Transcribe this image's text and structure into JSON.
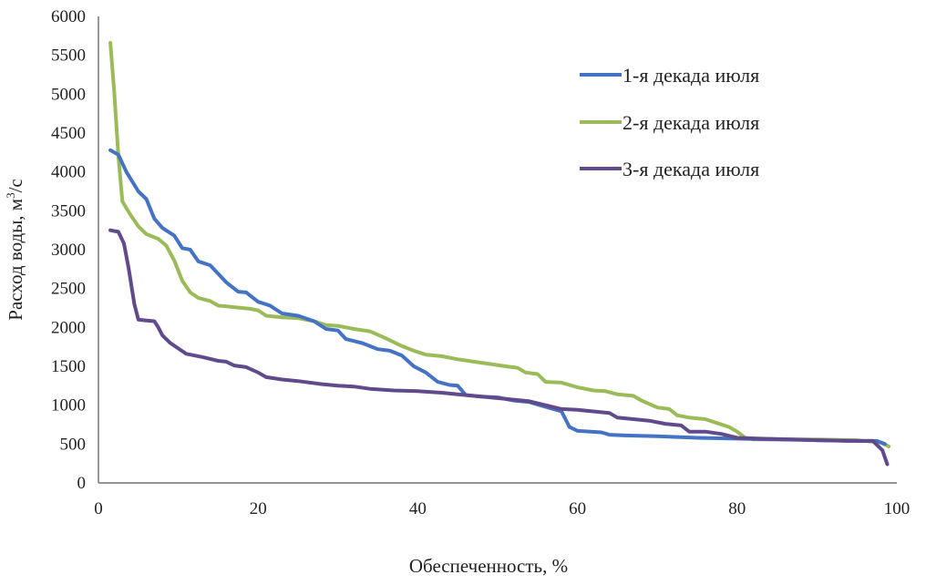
{
  "chart_data": {
    "type": "line",
    "title": "",
    "xlabel": "Обеспеченность, %",
    "ylabel": "Расход воды, м³/с",
    "ylabel_base": "Расход воды, м",
    "ylabel_sup": "3",
    "ylabel_tail": "/с",
    "xlim": [
      0,
      100
    ],
    "ylim": [
      0,
      6000
    ],
    "xticks": [
      "0",
      "20",
      "40",
      "60",
      "80",
      "100"
    ],
    "xtick_values": [
      0,
      20,
      40,
      60,
      80,
      100
    ],
    "yticks": [
      "0",
      "500",
      "1000",
      "1500",
      "2000",
      "2500",
      "3000",
      "3500",
      "4000",
      "4500",
      "5000",
      "5500",
      "6000"
    ],
    "ytick_values": [
      0,
      500,
      1000,
      1500,
      2000,
      2500,
      3000,
      3500,
      4000,
      4500,
      5000,
      5500,
      6000
    ],
    "grid": false,
    "legend_position": "top-right",
    "series": [
      {
        "name": "1-я декада июля",
        "color": "#4472c4",
        "points": [
          [
            1.5,
            4280
          ],
          [
            2.5,
            4220
          ],
          [
            3.5,
            4000
          ],
          [
            5,
            3750
          ],
          [
            6,
            3650
          ],
          [
            7,
            3400
          ],
          [
            8,
            3280
          ],
          [
            9.5,
            3180
          ],
          [
            10.5,
            3020
          ],
          [
            11.5,
            3000
          ],
          [
            12.5,
            2850
          ],
          [
            14,
            2800
          ],
          [
            16,
            2580
          ],
          [
            17.5,
            2460
          ],
          [
            18.5,
            2450
          ],
          [
            20,
            2330
          ],
          [
            21.5,
            2280
          ],
          [
            23,
            2180
          ],
          [
            25,
            2150
          ],
          [
            27,
            2080
          ],
          [
            28.5,
            1980
          ],
          [
            30,
            1960
          ],
          [
            31,
            1850
          ],
          [
            33,
            1800
          ],
          [
            35,
            1720
          ],
          [
            36.5,
            1700
          ],
          [
            38,
            1640
          ],
          [
            39.5,
            1500
          ],
          [
            41,
            1420
          ],
          [
            42.5,
            1300
          ],
          [
            44,
            1260
          ],
          [
            45,
            1250
          ],
          [
            46,
            1130
          ],
          [
            48,
            1110
          ],
          [
            50,
            1100
          ],
          [
            52,
            1060
          ],
          [
            54,
            1040
          ],
          [
            56,
            980
          ],
          [
            58,
            920
          ],
          [
            59,
            720
          ],
          [
            60,
            670
          ],
          [
            63,
            650
          ],
          [
            64,
            620
          ],
          [
            66,
            610
          ],
          [
            70,
            600
          ],
          [
            75,
            580
          ],
          [
            80,
            570
          ],
          [
            85,
            560
          ],
          [
            90,
            550
          ],
          [
            95,
            540
          ],
          [
            97.5,
            540
          ],
          [
            98.5,
            500
          ]
        ]
      },
      {
        "name": "2-я декада июля",
        "color": "#9bbb59",
        "points": [
          [
            1.5,
            5660
          ],
          [
            2,
            5000
          ],
          [
            2.5,
            4200
          ],
          [
            3,
            3620
          ],
          [
            4,
            3450
          ],
          [
            5,
            3300
          ],
          [
            6,
            3200
          ],
          [
            7.5,
            3140
          ],
          [
            8.5,
            3050
          ],
          [
            9.5,
            2860
          ],
          [
            10.5,
            2600
          ],
          [
            11.5,
            2450
          ],
          [
            12.5,
            2380
          ],
          [
            14,
            2340
          ],
          [
            15,
            2280
          ],
          [
            17,
            2260
          ],
          [
            19,
            2240
          ],
          [
            20,
            2220
          ],
          [
            21,
            2150
          ],
          [
            23,
            2130
          ],
          [
            25,
            2120
          ],
          [
            27,
            2080
          ],
          [
            28.5,
            2030
          ],
          [
            30,
            2020
          ],
          [
            32,
            1980
          ],
          [
            34,
            1950
          ],
          [
            36,
            1860
          ],
          [
            38,
            1760
          ],
          [
            39.5,
            1700
          ],
          [
            41,
            1650
          ],
          [
            43,
            1630
          ],
          [
            45,
            1590
          ],
          [
            47,
            1560
          ],
          [
            49,
            1530
          ],
          [
            51,
            1500
          ],
          [
            52.5,
            1480
          ],
          [
            53.5,
            1420
          ],
          [
            55,
            1400
          ],
          [
            56,
            1300
          ],
          [
            58,
            1290
          ],
          [
            60,
            1230
          ],
          [
            62,
            1190
          ],
          [
            63.5,
            1180
          ],
          [
            65,
            1140
          ],
          [
            67,
            1120
          ],
          [
            68,
            1060
          ],
          [
            70,
            970
          ],
          [
            71.5,
            950
          ],
          [
            72.5,
            870
          ],
          [
            74,
            840
          ],
          [
            76,
            820
          ],
          [
            77.5,
            770
          ],
          [
            79,
            720
          ],
          [
            80,
            660
          ],
          [
            81,
            580
          ],
          [
            82,
            560
          ],
          [
            85,
            560
          ],
          [
            90,
            560
          ],
          [
            95,
            550
          ],
          [
            98,
            520
          ],
          [
            99,
            470
          ]
        ]
      },
      {
        "name": "3-я декада июля",
        "color": "#604a8b",
        "points": [
          [
            1.5,
            3250
          ],
          [
            2.5,
            3230
          ],
          [
            3.2,
            3080
          ],
          [
            3.8,
            2750
          ],
          [
            4.5,
            2300
          ],
          [
            5,
            2100
          ],
          [
            6,
            2090
          ],
          [
            7,
            2080
          ],
          [
            7.5,
            2000
          ],
          [
            8,
            1900
          ],
          [
            9,
            1800
          ],
          [
            10,
            1730
          ],
          [
            11,
            1660
          ],
          [
            13,
            1620
          ],
          [
            15,
            1570
          ],
          [
            16,
            1560
          ],
          [
            17,
            1510
          ],
          [
            18.5,
            1490
          ],
          [
            20,
            1420
          ],
          [
            21,
            1360
          ],
          [
            23,
            1330
          ],
          [
            25,
            1310
          ],
          [
            28,
            1270
          ],
          [
            30,
            1250
          ],
          [
            32,
            1240
          ],
          [
            34,
            1210
          ],
          [
            37,
            1190
          ],
          [
            40,
            1180
          ],
          [
            43,
            1160
          ],
          [
            45,
            1140
          ],
          [
            48,
            1110
          ],
          [
            51,
            1080
          ],
          [
            54,
            1050
          ],
          [
            56,
            1000
          ],
          [
            58,
            950
          ],
          [
            60,
            940
          ],
          [
            62,
            920
          ],
          [
            64,
            900
          ],
          [
            65,
            840
          ],
          [
            67,
            820
          ],
          [
            69,
            800
          ],
          [
            71,
            760
          ],
          [
            73,
            740
          ],
          [
            74,
            660
          ],
          [
            76,
            660
          ],
          [
            78,
            630
          ],
          [
            80,
            580
          ],
          [
            83,
            570
          ],
          [
            87,
            560
          ],
          [
            90,
            550
          ],
          [
            94,
            540
          ],
          [
            97,
            540
          ],
          [
            98.2,
            420
          ],
          [
            98.8,
            240
          ]
        ]
      }
    ]
  }
}
